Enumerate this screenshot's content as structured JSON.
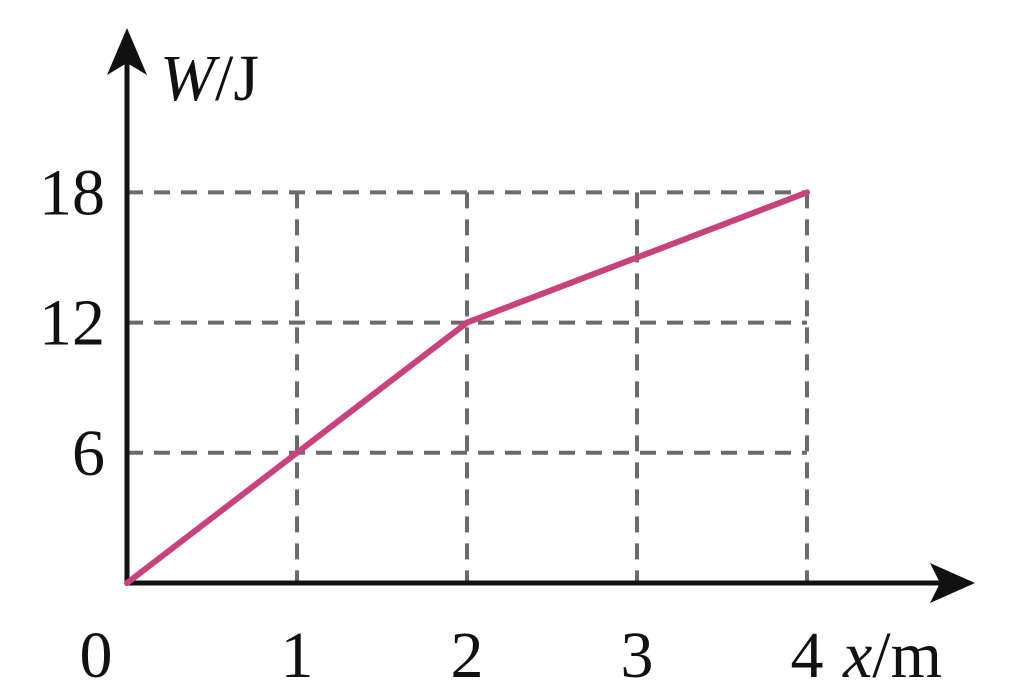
{
  "chart_data": {
    "type": "line",
    "x": [
      0,
      2,
      4
    ],
    "series": [
      {
        "values": [
          0,
          12,
          18
        ],
        "color": "#c8437e"
      }
    ],
    "xlabel": {
      "var": "x",
      "unit": "/m"
    },
    "ylabel": {
      "var": "W",
      "unit": "/J"
    },
    "xticks": [
      1,
      2,
      3,
      4
    ],
    "yticks": [
      6,
      12,
      18
    ],
    "origin_label": "0",
    "xlim": [
      0,
      4
    ],
    "ylim": [
      0,
      18
    ],
    "grid": true,
    "grid_style": "dashed",
    "grid_color": "#6b6b6b",
    "axis_color": "#111111"
  }
}
